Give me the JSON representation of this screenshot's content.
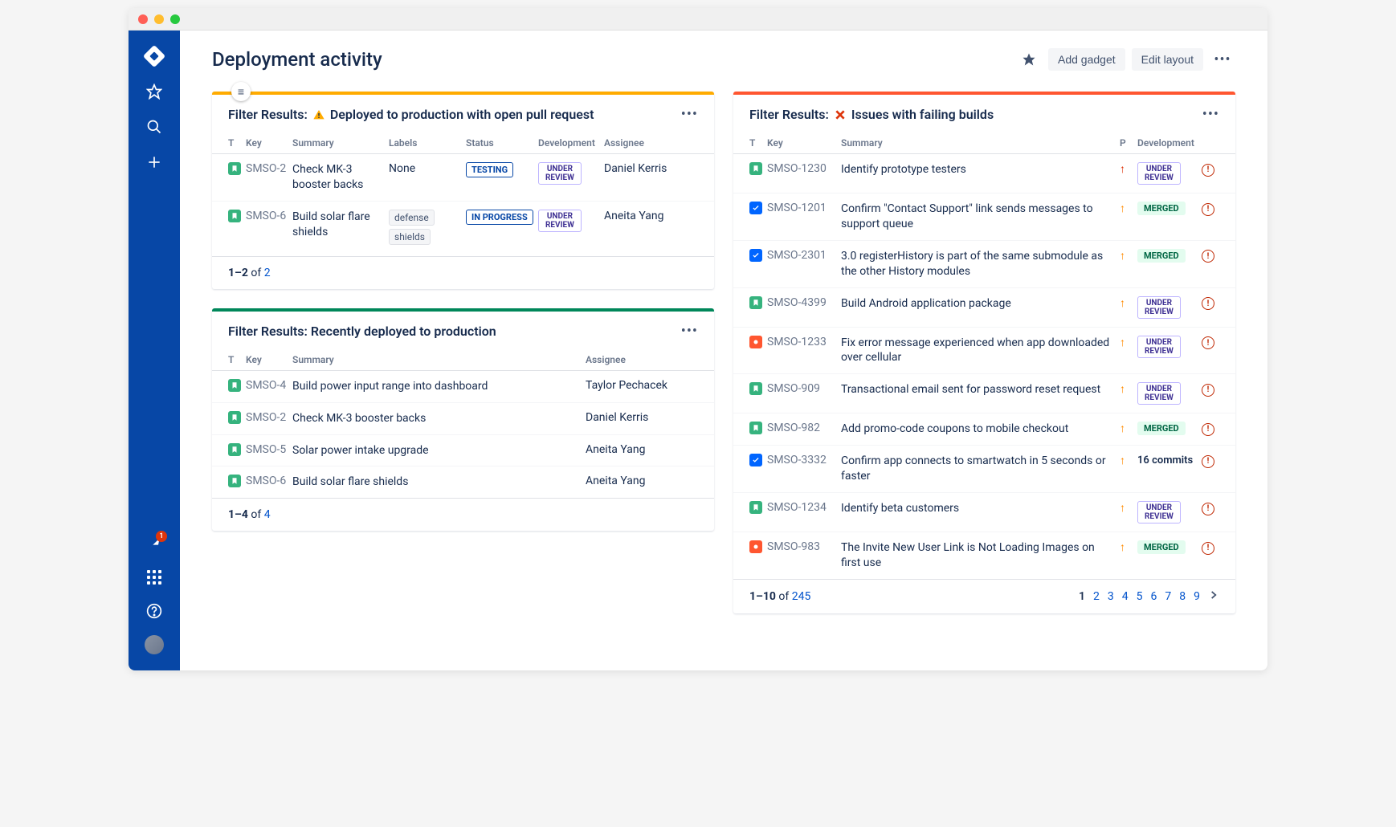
{
  "page": {
    "title": "Deployment activity"
  },
  "header": {
    "star_label": "★",
    "add_gadget": "Add gadget",
    "edit_layout": "Edit layout"
  },
  "sidebar": {
    "notif_count": "1"
  },
  "panel1": {
    "border_color": "#ffab00",
    "title_prefix": "Filter Results:",
    "title_suffix": "Deployed to production with open pull request",
    "icon": "warn",
    "columns": [
      "T",
      "Key",
      "Summary",
      "Labels",
      "Status",
      "Development",
      "Assignee"
    ],
    "rows": [
      {
        "type": "story",
        "key": "SMSO-2",
        "summary": "Check MK-3 booster backs",
        "labels": [
          "None"
        ],
        "labels_plain": true,
        "status": "TESTING",
        "dev": "UNDER REVIEW",
        "assignee": "Daniel Kerris"
      },
      {
        "type": "story",
        "key": "SMSO-6",
        "summary": "Build solar flare shields",
        "labels": [
          "defense",
          "shields"
        ],
        "labels_plain": false,
        "status": "IN PROGRESS",
        "dev": "UNDER REVIEW",
        "assignee": "Aneita Yang"
      }
    ],
    "footer": {
      "range": "1–2",
      "of": "of",
      "total": "2"
    }
  },
  "panel2": {
    "border_color": "#00875a",
    "title": "Filter Results: Recently deployed to production",
    "columns": [
      "T",
      "Key",
      "Summary",
      "Assignee"
    ],
    "rows": [
      {
        "type": "story",
        "key": "SMSO-4",
        "summary": "Build power input range into dashboard",
        "assignee": "Taylor Pechacek"
      },
      {
        "type": "story",
        "key": "SMSO-2",
        "summary": "Check MK-3 booster backs",
        "assignee": "Daniel Kerris"
      },
      {
        "type": "story",
        "key": "SMSO-5",
        "summary": "Solar power intake upgrade",
        "assignee": "Aneita Yang"
      },
      {
        "type": "story",
        "key": "SMSO-6",
        "summary": "Build solar flare shields",
        "assignee": "Aneita Yang"
      }
    ],
    "footer": {
      "range": "1–4",
      "of": "of",
      "total": "4"
    }
  },
  "panel3": {
    "border_color": "#ff5630",
    "title_prefix": "Filter Results:",
    "title_suffix": "Issues with failing builds",
    "icon": "x",
    "columns": [
      "T",
      "Key",
      "Summary",
      "P",
      "Development",
      ""
    ],
    "rows": [
      {
        "type": "story",
        "key": "SMSO-1230",
        "summary": "Identify prototype testers",
        "priority": "high",
        "dev": "UNDER REVIEW",
        "dev_kind": "review"
      },
      {
        "type": "task",
        "key": "SMSO-1201",
        "summary": "Confirm \"Contact Support\" link sends messages to support queue",
        "priority": "med",
        "dev": "MERGED",
        "dev_kind": "merged"
      },
      {
        "type": "task",
        "key": "SMSO-2301",
        "summary": "3.0 registerHistory is part of the same submodule as the other History modules",
        "priority": "med",
        "dev": "MERGED",
        "dev_kind": "merged"
      },
      {
        "type": "story",
        "key": "SMSO-4399",
        "summary": "Build Android application package",
        "priority": "med",
        "dev": "UNDER REVIEW",
        "dev_kind": "review"
      },
      {
        "type": "bug",
        "key": "SMSO-1233",
        "summary": "Fix error message experienced when app downloaded over cellular",
        "priority": "med",
        "dev": "UNDER REVIEW",
        "dev_kind": "review"
      },
      {
        "type": "story",
        "key": "SMSO-909",
        "summary": "Transactional email sent for password reset request",
        "priority": "med",
        "dev": "UNDER REVIEW",
        "dev_kind": "review"
      },
      {
        "type": "story",
        "key": "SMSO-982",
        "summary": "Add promo-code coupons to mobile checkout",
        "priority": "med",
        "dev": "MERGED",
        "dev_kind": "merged"
      },
      {
        "type": "task",
        "key": "SMSO-3332",
        "summary": "Confirm app connects to smartwatch in 5 seconds or faster",
        "priority": "med",
        "dev": "16 commits",
        "dev_kind": "commits"
      },
      {
        "type": "story",
        "key": "SMSO-1234",
        "summary": "Identify beta customers",
        "priority": "med",
        "dev": "UNDER REVIEW",
        "dev_kind": "review"
      },
      {
        "type": "bug",
        "key": "SMSO-983",
        "summary": "The Invite New User Link is Not Loading Images on first use",
        "priority": "med",
        "dev": "MERGED",
        "dev_kind": "merged"
      }
    ],
    "footer": {
      "range": "1–10",
      "of": "of",
      "total": "245"
    },
    "pages": [
      "1",
      "2",
      "3",
      "4",
      "5",
      "6",
      "7",
      "8",
      "9"
    ]
  }
}
